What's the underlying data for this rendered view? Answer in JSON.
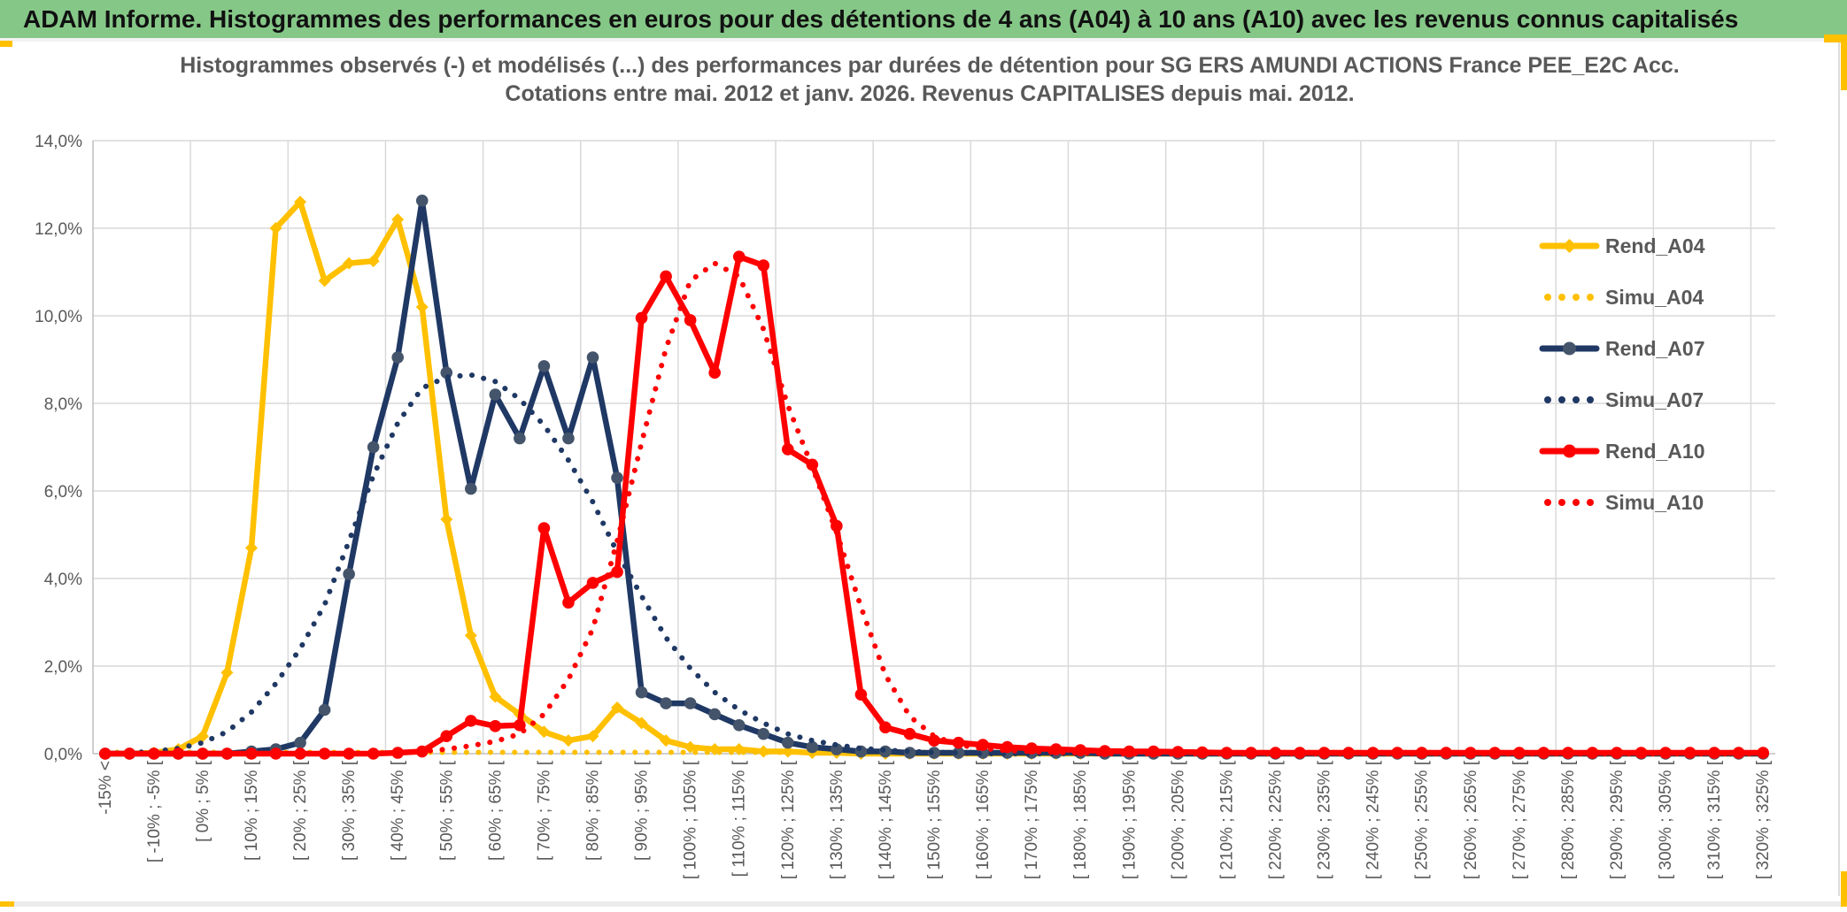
{
  "banner": {
    "title": "ADAM Informe. Histogrammes des performances en euros pour des détentions de 4 ans (A04) à 10 ans (A10) avec les revenus connus capitalisés",
    "bg_color": "#85C787",
    "text_color": "#111111",
    "accent_color": "#FFC000"
  },
  "chart_data": {
    "type": "line",
    "title_line1": "Histogrammes observés (-) et modélisés (...) des performances par durées de détention pour SG ERS AMUNDI ACTIONS France PEE_E2C Acc.",
    "title_line2": "Cotations entre mai. 2012 et janv. 2026. Revenus CAPITALISES depuis mai. 2012.",
    "grid": "on",
    "legend_position": "right-inside",
    "ylim": [
      0,
      14
    ],
    "y_tick_step": 2,
    "y_tick_labels": [
      "0,0%",
      "2,0%",
      "4,0%",
      "6,0%",
      "8,0%",
      "10,0%",
      "12,0%",
      "14,0%"
    ],
    "x_axis_note": "bins of 5 percentage points, every second bin labelled, vertical gridline every 4 bins",
    "categories": [
      "-15% <",
      "",
      "[ -10% ; -5% [",
      "",
      "[ 0% ; 5% [",
      "",
      "[ 10% ; 15% [",
      "",
      "[ 20% ; 25% [",
      "",
      "[ 30% ; 35% [",
      "",
      "[ 40% ; 45% [",
      "",
      "[ 50% ; 55% [",
      "",
      "[ 60% ; 65% [",
      "",
      "[ 70% ; 75% [",
      "",
      "[ 80% ; 85% [",
      "",
      "[ 90% ; 95% [",
      "",
      "[ 100% ; 105% [",
      "",
      "[ 110% ; 115% [",
      "",
      "[ 120% ; 125% [",
      "",
      "[ 130% ; 135% [",
      "",
      "[ 140% ; 145% [",
      "",
      "[ 150% ; 155% [",
      "",
      "[ 160% ; 165% [",
      "",
      "[ 170% ; 175% [",
      "",
      "[ 180% ; 185% [",
      "",
      "[ 190% ; 195% [",
      "",
      "[ 200% ; 205% [",
      "",
      "[ 210% ; 215% [",
      "",
      "[ 220% ; 225% [",
      "",
      "[ 230% ; 235% [",
      "",
      "[ 240% ; 245% [",
      "",
      "[ 250% ; 255% [",
      "",
      "[ 260% ; 265% [",
      "",
      "[ 270% ; 275% [",
      "",
      "[ 280% ; 285% [",
      "",
      "[ 290% ; 295% [",
      "",
      "[ 300% ; 305% [",
      "",
      "[ 310% ; 315% [",
      "",
      "[ 320% ; 325% ["
    ],
    "series": [
      {
        "name": "Rend_A04",
        "color": "#FFC000",
        "line": "solid",
        "marker": "diamond",
        "marker_color": "#FFC000",
        "values": [
          0,
          0,
          0.02,
          0.1,
          0.4,
          1.85,
          4.7,
          12.0,
          12.6,
          10.8,
          11.2,
          11.25,
          12.2,
          10.2,
          5.35,
          2.7,
          1.3,
          0.9,
          0.5,
          0.3,
          0.4,
          1.05,
          0.7,
          0.3,
          0.15,
          0.1,
          0.1,
          0.05,
          0.05,
          0.02,
          0.02,
          0,
          0,
          0,
          0,
          0,
          0,
          0,
          0,
          0,
          0,
          0,
          0,
          0,
          0,
          0,
          0,
          0,
          0,
          0,
          0,
          0,
          0,
          0,
          0,
          0,
          0,
          0,
          0,
          0,
          0,
          0,
          0,
          0,
          0,
          0,
          0,
          0,
          0
        ]
      },
      {
        "name": "Simu_A04",
        "color": "#FFC000",
        "line": "dotted",
        "marker": "none",
        "values": [
          0.03,
          0.03,
          0.03,
          0.03,
          0.03,
          0.03,
          0.03,
          0.03,
          0.03,
          0.03,
          0.03,
          0.03,
          0.03,
          0.03,
          0.03,
          0.03,
          0.03,
          0.03,
          0.03,
          0.03,
          0.03,
          0.03,
          0.03,
          0.03,
          0.03,
          0.03,
          0.03,
          0.03,
          0.03,
          0.03,
          0.03,
          0.03,
          0.03,
          0.03,
          0.03,
          0.03,
          0.03,
          0.03,
          0.03,
          0.03,
          0.03,
          0.03,
          0.03,
          0.03,
          0.03,
          0.03,
          0.03,
          0.03,
          0.03,
          0.03,
          0.03,
          0.03,
          0.03,
          0.03,
          0.03,
          0.03,
          0.03,
          0.03,
          0.03,
          0.03,
          0.03,
          0.03,
          0.03,
          0.03,
          0.03,
          0.03,
          0.03,
          0.03,
          0.03
        ]
      },
      {
        "name": "Rend_A07",
        "color": "#1F3864",
        "line": "solid",
        "marker": "circle",
        "marker_color": "#44546A",
        "values": [
          0,
          0,
          0,
          0,
          0,
          0,
          0.05,
          0.1,
          0.25,
          1.0,
          4.1,
          7.0,
          9.05,
          12.63,
          8.7,
          6.05,
          8.2,
          7.2,
          8.85,
          7.2,
          9.05,
          6.3,
          1.4,
          1.15,
          1.15,
          0.9,
          0.65,
          0.45,
          0.25,
          0.15,
          0.1,
          0.05,
          0.05,
          0.02,
          0.02,
          0.02,
          0.02,
          0.02,
          0.02,
          0.02,
          0.02,
          0,
          0,
          0,
          0,
          0,
          0,
          0,
          0,
          0,
          0,
          0,
          0,
          0,
          0,
          0,
          0,
          0,
          0,
          0,
          0,
          0,
          0,
          0,
          0,
          0,
          0,
          0,
          0
        ]
      },
      {
        "name": "Simu_A07",
        "color": "#1F3864",
        "line": "dotted",
        "marker": "none",
        "values": [
          0,
          0.02,
          0.05,
          0.12,
          0.25,
          0.5,
          0.95,
          1.6,
          2.4,
          3.4,
          4.85,
          6.35,
          7.55,
          8.35,
          8.6,
          8.65,
          8.5,
          8.1,
          7.5,
          6.7,
          5.75,
          4.6,
          3.6,
          2.65,
          1.95,
          1.4,
          1.0,
          0.7,
          0.45,
          0.3,
          0.2,
          0.12,
          0.08,
          0.05,
          0.03,
          0.02,
          0,
          0,
          0,
          0,
          0,
          0,
          0,
          0,
          0,
          0,
          0,
          0,
          0,
          0,
          0,
          0,
          0,
          0,
          0,
          0,
          0,
          0,
          0,
          0,
          0,
          0,
          0,
          0,
          0,
          0,
          0,
          0,
          0
        ]
      },
      {
        "name": "Rend_A10",
        "color": "#FF0000",
        "line": "solid",
        "marker": "circle",
        "marker_color": "#FF0000",
        "values": [
          0,
          0,
          0,
          0,
          0,
          0,
          0,
          0,
          0,
          0,
          0,
          0,
          0.02,
          0.05,
          0.4,
          0.75,
          0.63,
          0.65,
          5.15,
          3.45,
          3.9,
          4.15,
          9.95,
          10.9,
          9.9,
          8.7,
          11.35,
          11.15,
          6.95,
          6.6,
          5.2,
          1.35,
          0.6,
          0.45,
          0.3,
          0.25,
          0.2,
          0.15,
          0.12,
          0.1,
          0.08,
          0.06,
          0.05,
          0.05,
          0.04,
          0.03,
          0.02,
          0.02,
          0.02,
          0.02,
          0.02,
          0.02,
          0.02,
          0.02,
          0.02,
          0.02,
          0.02,
          0.02,
          0.02,
          0.02,
          0.02,
          0.02,
          0.02,
          0.02,
          0.02,
          0.02,
          0.02,
          0.02,
          0.02
        ]
      },
      {
        "name": "Simu_A10",
        "color": "#FF0000",
        "line": "dotted",
        "marker": "none",
        "values": [
          0,
          0,
          0,
          0,
          0,
          0,
          0,
          0,
          0,
          0,
          0,
          0,
          0.02,
          0.05,
          0.1,
          0.18,
          0.28,
          0.45,
          0.9,
          1.7,
          2.85,
          4.85,
          7.1,
          9.25,
          10.8,
          11.2,
          10.9,
          9.7,
          7.95,
          6.55,
          5.05,
          3.35,
          1.8,
          0.85,
          0.4,
          0.2,
          0.12,
          0.07,
          0.05,
          0.03,
          0.02,
          0,
          0,
          0,
          0,
          0,
          0,
          0,
          0,
          0,
          0,
          0,
          0,
          0,
          0,
          0,
          0,
          0,
          0,
          0,
          0,
          0,
          0,
          0,
          0,
          0,
          0,
          0,
          0
        ]
      }
    ]
  },
  "colors": {
    "gridline": "#D9D9D9",
    "axis": "#BFBFBF",
    "axis_text": "#595959",
    "title_text": "#595959"
  }
}
